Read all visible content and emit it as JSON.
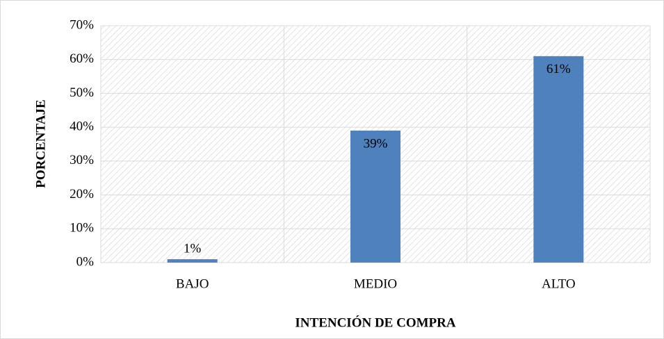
{
  "chart_data": {
    "type": "bar",
    "x_label": "INTENCIÓN DE COMPRA",
    "y_label": "PORCENTAJE",
    "categories": [
      "BAJO",
      "MEDIO",
      "ALTO"
    ],
    "values": [
      1,
      39,
      61
    ],
    "value_labels": [
      "1%",
      "39%",
      "61%"
    ],
    "color": "#4f81bd",
    "ylim": [
      0,
      70
    ],
    "yticks": [
      {
        "value": 0,
        "label": "0%"
      },
      {
        "value": 10,
        "label": "10%"
      },
      {
        "value": 20,
        "label": "20%"
      },
      {
        "value": 30,
        "label": "30%"
      },
      {
        "value": 40,
        "label": "40%"
      },
      {
        "value": 50,
        "label": "50%"
      },
      {
        "value": 60,
        "label": "60%"
      },
      {
        "value": 70,
        "label": "70%"
      }
    ],
    "grid": true
  }
}
